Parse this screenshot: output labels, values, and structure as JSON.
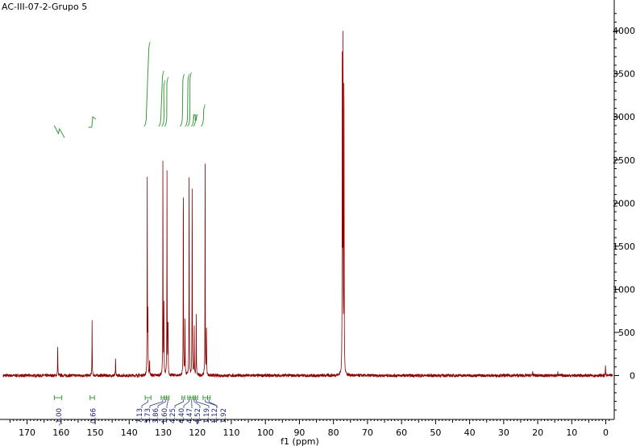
{
  "title": "AC-III-07-2-Grupo 5",
  "colors": {
    "spectrum": "#8b0000",
    "integral_curve": "#3a9a3a",
    "integral_label": "#1a237e",
    "integral_bracket": "#3a9a3a",
    "axis": "#000000"
  },
  "chart_data": {
    "type": "line",
    "title": "AC-III-07-2-Grupo 5",
    "xlabel": "f1 (ppm)",
    "ylabel": "",
    "x_reversed": true,
    "xlim": [
      177,
      -2
    ],
    "ylim": [
      -500,
      4300
    ],
    "x_ticks": [
      170,
      160,
      150,
      140,
      130,
      120,
      110,
      100,
      90,
      80,
      70,
      60,
      50,
      40,
      30,
      20,
      10,
      0
    ],
    "y_ticks": [
      0,
      500,
      1000,
      1500,
      2000,
      2500,
      3000,
      3500,
      4000
    ],
    "grid": false,
    "peaks": [
      {
        "x": 161.0,
        "y": 390
      },
      {
        "x": 150.9,
        "y": 630
      },
      {
        "x": 144.0,
        "y": 200
      },
      {
        "x": 134.7,
        "y": 2270
      },
      {
        "x": 134.5,
        "y": 780
      },
      {
        "x": 134.0,
        "y": 200
      },
      {
        "x": 130.1,
        "y": 2580
      },
      {
        "x": 129.8,
        "y": 820
      },
      {
        "x": 128.9,
        "y": 2380
      },
      {
        "x": 128.6,
        "y": 700
      },
      {
        "x": 124.1,
        "y": 2440
      },
      {
        "x": 123.6,
        "y": 720
      },
      {
        "x": 122.4,
        "y": 2530
      },
      {
        "x": 121.5,
        "y": 2400
      },
      {
        "x": 120.9,
        "y": 610
      },
      {
        "x": 120.3,
        "y": 690
      },
      {
        "x": 117.7,
        "y": 2560
      },
      {
        "x": 117.3,
        "y": 600
      },
      {
        "x": 77.4,
        "y": 3950
      },
      {
        "x": 77.2,
        "y": 3920
      },
      {
        "x": 76.9,
        "y": 3900
      },
      {
        "x": 21.5,
        "y": 60
      },
      {
        "x": 14.1,
        "y": 60
      },
      {
        "x": 0.1,
        "y": 130
      }
    ],
    "integrals": [
      {
        "from": 162.0,
        "to": 159.8,
        "value": "-1.00"
      },
      {
        "from": 151.5,
        "to": 150.2,
        "value": "0.66"
      },
      {
        "from": 135.3,
        "to": 133.6,
        "value": "7.13"
      },
      {
        "from": 130.6,
        "to": 129.7,
        "value": "3.73"
      },
      {
        "from": 129.7,
        "to": 129.0,
        "value": "3.86"
      },
      {
        "from": 129.0,
        "to": 128.3,
        "value": "1.60"
      },
      {
        "from": 124.5,
        "to": 123.7,
        "value": "4.25"
      },
      {
        "from": 122.8,
        "to": 122.1,
        "value": "4.40"
      },
      {
        "from": 122.1,
        "to": 121.2,
        "value": "4.47"
      },
      {
        "from": 121.2,
        "to": 120.6,
        "value": "4.52"
      },
      {
        "from": 120.6,
        "to": 119.9,
        "value": "1.19"
      },
      {
        "from": 118.3,
        "to": 117.0,
        "value": "1.12"
      },
      {
        "from": 117.0,
        "to": 116.2,
        "value": "1.92"
      }
    ]
  }
}
